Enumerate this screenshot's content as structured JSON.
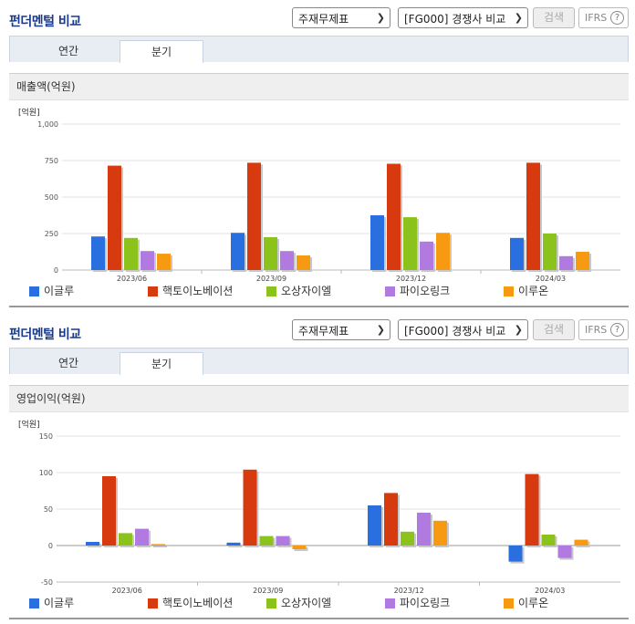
{
  "colors": {
    "이글루": "#2a6fe0",
    "핵토이노베이션": "#d83a10",
    "오상자이엘": "#8cc21c",
    "파이오링크": "#b07ae0",
    "이루온": "#f79a12"
  },
  "panels": [
    {
      "title": "펀더멘털 비교",
      "select1": "주재무제표",
      "select2": "[FG000] 경쟁사 비교",
      "search_label": "검색",
      "ifrs_label": "IFRS",
      "ifrs_help": "?",
      "tabs": [
        "연간",
        "분기"
      ],
      "active_tab": 1,
      "subheading": "매출액(억원)"
    },
    {
      "title": "펀더멘털 비교",
      "select1": "주재무제표",
      "select2": "[FG000] 경쟁사 비교",
      "search_label": "검색",
      "ifrs_label": "IFRS",
      "ifrs_help": "?",
      "tabs": [
        "연간",
        "분기"
      ],
      "active_tab": 1,
      "subheading": "영업이익(억원)"
    }
  ],
  "chart_data": [
    {
      "type": "bar",
      "title": "매출액(억원)",
      "ylabel": "[억원]",
      "categories": [
        "2023/06",
        "2023/09",
        "2023/12",
        "2024/03"
      ],
      "ylim": [
        0,
        1000
      ],
      "yticks": [
        0,
        250,
        500,
        750,
        1000
      ],
      "ytick_labels": [
        "0",
        "250",
        "500",
        "750",
        "1,000"
      ],
      "series": [
        {
          "name": "이글루",
          "values": [
            230,
            255,
            375,
            220
          ]
        },
        {
          "name": "핵토이노베이션",
          "values": [
            715,
            735,
            728,
            735
          ]
        },
        {
          "name": "오상자이엘",
          "values": [
            220,
            225,
            362,
            250
          ]
        },
        {
          "name": "파이오링크",
          "values": [
            130,
            130,
            195,
            95
          ]
        },
        {
          "name": "이루온",
          "values": [
            112,
            100,
            255,
            125
          ]
        }
      ],
      "legend_position": "bottom"
    },
    {
      "type": "bar",
      "title": "영업이익(억원)",
      "ylabel": "[억원]",
      "categories": [
        "2023/06",
        "2023/09",
        "2023/12",
        "2024/03"
      ],
      "ylim": [
        -50,
        150
      ],
      "yticks": [
        -50,
        0,
        50,
        100,
        150
      ],
      "ytick_labels": [
        "-50",
        "0",
        "50",
        "100",
        "150"
      ],
      "series": [
        {
          "name": "이글루",
          "values": [
            5,
            4,
            55,
            -22
          ]
        },
        {
          "name": "핵토이노베이션",
          "values": [
            95,
            104,
            72,
            98
          ]
        },
        {
          "name": "오상자이엘",
          "values": [
            17,
            13,
            19,
            15
          ]
        },
        {
          "name": "파이오링크",
          "values": [
            23,
            13,
            45,
            -17
          ]
        },
        {
          "name": "이루온",
          "values": [
            2,
            -5,
            34,
            8
          ]
        }
      ],
      "legend_position": "bottom"
    }
  ]
}
